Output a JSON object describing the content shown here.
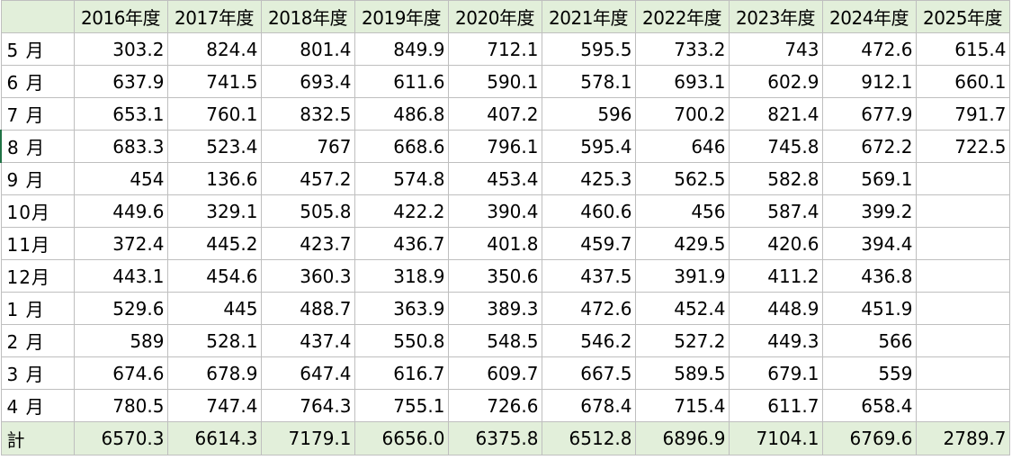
{
  "colors": {
    "header_fill": "#e2efda",
    "gridline": "#bfbfbf"
  },
  "table": {
    "columns": [
      "2016年度",
      "2017年度",
      "2018年度",
      "2019年度",
      "2020年度",
      "2021年度",
      "2022年度",
      "2023年度",
      "2024年度",
      "2025年度"
    ],
    "rows": [
      {
        "label": "5 月",
        "values": [
          "303.2",
          "824.4",
          "801.4",
          "849.9",
          "712.1",
          "595.5",
          "733.2",
          "743",
          "472.6",
          "615.4"
        ]
      },
      {
        "label": "6 月",
        "values": [
          "637.9",
          "741.5",
          "693.4",
          "611.6",
          "590.1",
          "578.1",
          "693.1",
          "602.9",
          "912.1",
          "660.1"
        ]
      },
      {
        "label": "7 月",
        "values": [
          "653.1",
          "760.1",
          "832.5",
          "486.8",
          "407.2",
          "596",
          "700.2",
          "821.4",
          "677.9",
          "791.7"
        ]
      },
      {
        "label": "8 月",
        "values": [
          "683.3",
          "523.4",
          "767",
          "668.6",
          "796.1",
          "595.4",
          "646",
          "745.8",
          "672.2",
          "722.5"
        ]
      },
      {
        "label": "9 月",
        "values": [
          "454",
          "136.6",
          "457.2",
          "574.8",
          "453.4",
          "425.3",
          "562.5",
          "582.8",
          "569.1",
          ""
        ]
      },
      {
        "label": "10月",
        "values": [
          "449.6",
          "329.1",
          "505.8",
          "422.2",
          "390.4",
          "460.6",
          "456",
          "587.4",
          "399.2",
          ""
        ]
      },
      {
        "label": "11月",
        "values": [
          "372.4",
          "445.2",
          "423.7",
          "436.7",
          "401.8",
          "459.7",
          "429.5",
          "420.6",
          "394.4",
          ""
        ]
      },
      {
        "label": "12月",
        "values": [
          "443.1",
          "454.6",
          "360.3",
          "318.9",
          "350.6",
          "437.5",
          "391.9",
          "411.2",
          "436.8",
          ""
        ]
      },
      {
        "label": "1 月",
        "values": [
          "529.6",
          "445",
          "488.7",
          "363.9",
          "389.3",
          "472.6",
          "452.4",
          "448.9",
          "451.9",
          ""
        ]
      },
      {
        "label": "2 月",
        "values": [
          "589",
          "528.1",
          "437.4",
          "550.8",
          "548.5",
          "546.2",
          "527.2",
          "449.3",
          "566",
          ""
        ]
      },
      {
        "label": "3 月",
        "values": [
          "674.6",
          "678.9",
          "647.4",
          "616.7",
          "609.7",
          "667.5",
          "589.5",
          "679.1",
          "559",
          ""
        ]
      },
      {
        "label": "4 月",
        "values": [
          "780.5",
          "747.4",
          "764.3",
          "755.1",
          "726.6",
          "678.4",
          "715.4",
          "611.7",
          "658.4",
          ""
        ]
      }
    ],
    "total": {
      "label": "計",
      "values": [
        "6570.3",
        "6614.3",
        "7179.1",
        "6656.0",
        "6375.8",
        "6512.8",
        "6896.9",
        "7104.1",
        "6769.6",
        "2789.7"
      ]
    }
  }
}
